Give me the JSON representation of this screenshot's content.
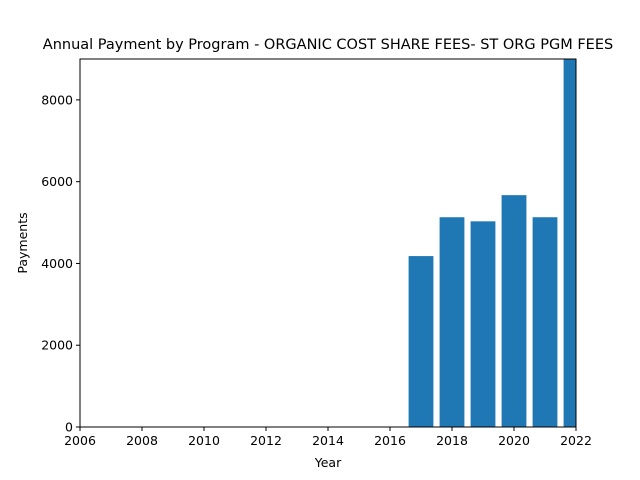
{
  "chart_data": {
    "type": "bar",
    "title": "Annual Payment by Program - ORGANIC COST SHARE FEES- ST ORG PGM FEES",
    "xlabel": "Year",
    "ylabel": "Payments",
    "xlim": [
      2006,
      2022
    ],
    "ylim": [
      0,
      9000
    ],
    "x_ticks": [
      "2006",
      "2008",
      "2010",
      "2012",
      "2014",
      "2016",
      "2018",
      "2020",
      "2022"
    ],
    "y_ticks": [
      "0",
      "2000",
      "4000",
      "6000",
      "8000"
    ],
    "categories": [
      2017,
      2018,
      2019,
      2020,
      2021,
      2022
    ],
    "values": [
      4180,
      5130,
      5030,
      5670,
      5130,
      9300
    ],
    "bar_color": "#1f77b4",
    "grid": false,
    "legend": "none"
  }
}
